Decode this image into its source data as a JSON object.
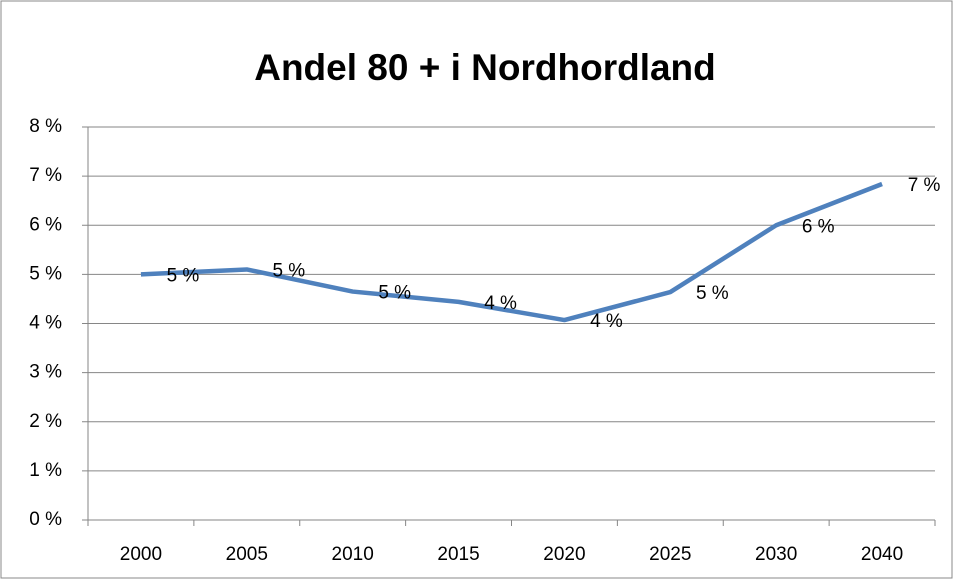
{
  "chart_data": {
    "type": "line",
    "title": "Andel 80 + i Nordhordland",
    "categories": [
      "2000",
      "2005",
      "2010",
      "2015",
      "2020",
      "2025",
      "2030",
      "2040"
    ],
    "series": [
      {
        "name": "Andel 80 +",
        "color": "#4f81bd",
        "values": [
          5.0,
          5.1,
          4.65,
          4.44,
          4.07,
          4.64,
          6.0,
          6.84
        ],
        "value_labels": [
          "5 %",
          "5 %",
          "5 %",
          "4 %",
          "4 %",
          "5 %",
          "6 %",
          "7 %"
        ]
      }
    ],
    "ylim": [
      0,
      8
    ],
    "yticks": [
      {
        "value": 0,
        "label": "0 %"
      },
      {
        "value": 1,
        "label": "1 %"
      },
      {
        "value": 2,
        "label": "2 %"
      },
      {
        "value": 3,
        "label": "3 %"
      },
      {
        "value": 4,
        "label": "4 %"
      },
      {
        "value": 5,
        "label": "5 %"
      },
      {
        "value": 6,
        "label": "6 %"
      },
      {
        "value": 7,
        "label": "7 %"
      },
      {
        "value": 8,
        "label": "8 %"
      }
    ],
    "grid": true
  }
}
